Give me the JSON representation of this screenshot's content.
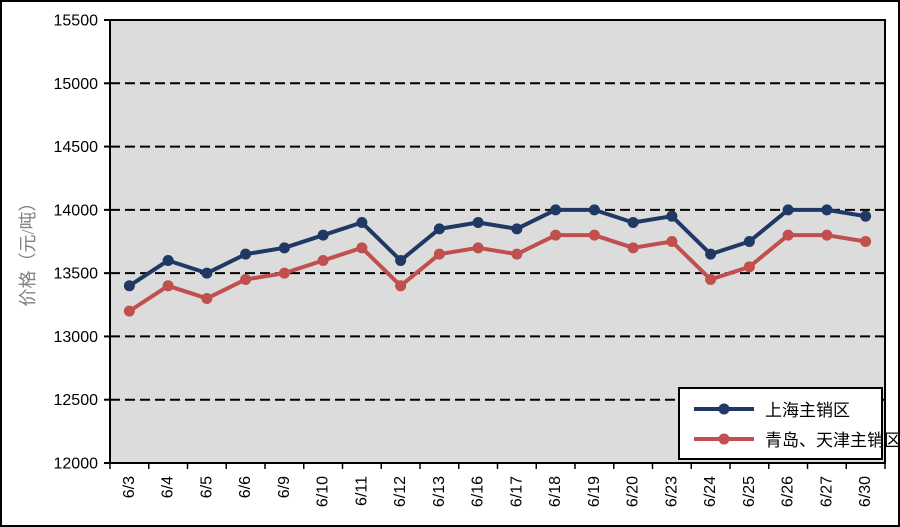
{
  "page": {
    "background": "#ffffff",
    "border_color": "#000000"
  },
  "chart_data": {
    "type": "line",
    "title": "",
    "xlabel": "",
    "ylabel": "价格（元/吨）",
    "ylabel_color": "#808080",
    "categories": [
      "6/3",
      "6/4",
      "6/5",
      "6/6",
      "6/9",
      "6/10",
      "6/11",
      "6/12",
      "6/13",
      "6/16",
      "6/17",
      "6/18",
      "6/19",
      "6/20",
      "6/23",
      "6/24",
      "6/25",
      "6/26",
      "6/27",
      "6/30"
    ],
    "series": [
      {
        "name": "上海主销区",
        "color": "#1f3864",
        "marker": "circle",
        "values": [
          13400,
          13600,
          13500,
          13650,
          13700,
          13800,
          13900,
          13600,
          13850,
          13900,
          13850,
          14000,
          14000,
          13900,
          13950,
          13650,
          13750,
          14000,
          14000,
          13950
        ]
      },
      {
        "name": "青岛、天津主销区",
        "color": "#c0504d",
        "marker": "circle",
        "values": [
          13200,
          13400,
          13300,
          13450,
          13500,
          13600,
          13700,
          13400,
          13650,
          13700,
          13650,
          13800,
          13800,
          13700,
          13750,
          13450,
          13550,
          13800,
          13800,
          13750
        ]
      }
    ],
    "ylim": [
      12000,
      15500
    ],
    "ytick_step": 500,
    "yticks": [
      12000,
      12500,
      13000,
      13500,
      14000,
      14500,
      15000,
      15500
    ],
    "grid": "horizontal-dashed",
    "gridline_color": "#000000",
    "plot_background": "#dcdcdc",
    "axis_color": "#000000",
    "legend_position": "bottom-right-inside",
    "x_label_rotation": -90
  }
}
